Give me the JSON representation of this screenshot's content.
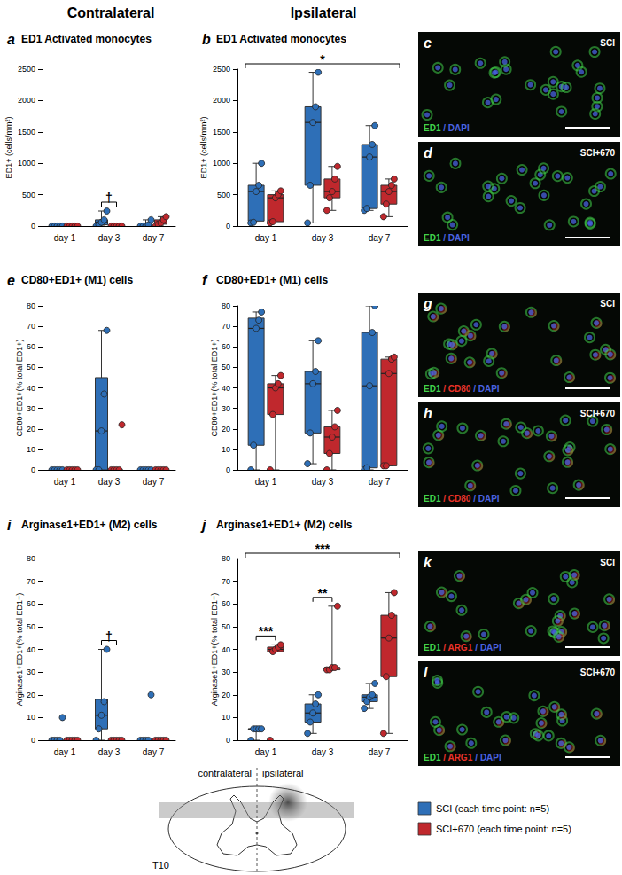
{
  "columns": [
    "Contralateral",
    "Ipsilateral"
  ],
  "chart_data": [
    {
      "panel": "a",
      "type": "boxplot",
      "title": "ED1 Activated monocytes",
      "ylabel": "ED1+ (cells/mm²)",
      "categories": [
        "day 1",
        "day 3",
        "day 7"
      ],
      "ylim": [
        0,
        2500
      ],
      "yticks": [
        0,
        500,
        1000,
        1500,
        2000,
        2500
      ],
      "grid": false,
      "series": [
        {
          "name": "SCI (each time point: n=5)",
          "color": "#2e6fb7",
          "boxes": [
            [
              0,
              0,
              0,
              0,
              0
            ],
            [
              0,
              20,
              60,
              100,
              240
            ],
            [
              0,
              0,
              0,
              20,
              100
            ]
          ],
          "points": [
            [
              0,
              0,
              0,
              0,
              0
            ],
            [
              0,
              20,
              60,
              100,
              240
            ],
            [
              0,
              0,
              0,
              20,
              100
            ]
          ]
        },
        {
          "name": "SCI+670 (each time point: n=5)",
          "color": "#c0282d",
          "boxes": [
            [
              0,
              0,
              0,
              0,
              0
            ],
            [
              0,
              0,
              0,
              0,
              0
            ],
            [
              0,
              30,
              50,
              100,
              150
            ]
          ],
          "points": [
            [
              0,
              0,
              0,
              0,
              0
            ],
            [
              0,
              0,
              0,
              0,
              0
            ],
            [
              0,
              30,
              50,
              100,
              150
            ]
          ]
        }
      ],
      "annotations": [
        {
          "text": "†",
          "span": [
            "day 3"
          ]
        }
      ]
    },
    {
      "panel": "b",
      "type": "boxplot",
      "title": "ED1 Activated monocytes",
      "ylabel": "ED1+ (cells/mm²)",
      "categories": [
        "day 1",
        "day 3",
        "day 7"
      ],
      "ylim": [
        0,
        2500
      ],
      "yticks": [
        0,
        500,
        1000,
        1500,
        2000,
        2500
      ],
      "grid": false,
      "series": [
        {
          "name": "SCI (each time point: n=5)",
          "color": "#2e6fb7",
          "boxes": [
            [
              50,
              80,
              550,
              650,
              1000
            ],
            [
              50,
              650,
              1650,
              1900,
              2450
            ],
            [
              250,
              280,
              1100,
              1300,
              1600
            ]
          ],
          "points": [
            [
              50,
              60,
              550,
              650,
              1000
            ],
            [
              50,
              650,
              1650,
              1900,
              2450
            ],
            [
              250,
              280,
              1100,
              1300,
              1600
            ]
          ]
        },
        {
          "name": "SCI+670 (each time point: n=5)",
          "color": "#c0282d",
          "boxes": [
            [
              50,
              70,
              450,
              500,
              560
            ],
            [
              250,
              450,
              550,
              750,
              950
            ],
            [
              150,
              350,
              550,
              650,
              750
            ]
          ],
          "points": [
            [
              50,
              70,
              450,
              500,
              560
            ],
            [
              250,
              450,
              550,
              750,
              950
            ],
            [
              150,
              350,
              550,
              650,
              750
            ]
          ]
        }
      ],
      "annotations": [
        {
          "text": "*",
          "span": [
            "day 1",
            "day 7"
          ]
        }
      ]
    },
    {
      "panel": "e",
      "type": "boxplot",
      "title": "CD80+ED1+ (M1) cells",
      "ylabel": "CD80+ED1+(% total ED1+)",
      "categories": [
        "day 1",
        "day 3",
        "day 7"
      ],
      "ylim": [
        0,
        80
      ],
      "yticks": [
        0,
        10,
        20,
        30,
        40,
        50,
        60,
        70,
        80
      ],
      "grid": false,
      "series": [
        {
          "name": "SCI (each time point: n=5)",
          "color": "#2e6fb7",
          "boxes": [
            [
              0,
              0,
              0,
              0,
              0
            ],
            [
              0,
              0,
              19,
              45,
              68
            ],
            [
              0,
              0,
              0,
              0,
              0
            ]
          ],
          "points": [
            [
              0,
              0,
              0,
              0,
              0
            ],
            [
              0,
              0,
              19,
              37,
              68
            ],
            [
              0,
              0,
              0,
              0,
              0
            ]
          ]
        },
        {
          "name": "SCI+670 (each time point: n=5)",
          "color": "#c0282d",
          "boxes": [
            [
              0,
              0,
              0,
              0,
              0
            ],
            [
              0,
              0,
              0,
              0,
              0
            ],
            [
              0,
              0,
              0,
              0,
              0
            ]
          ],
          "points": [
            [
              0,
              0,
              0,
              0,
              0
            ],
            [
              0,
              0,
              0,
              0,
              22
            ],
            [
              0,
              0,
              0,
              0,
              0
            ]
          ]
        }
      ],
      "annotations": []
    },
    {
      "panel": "f",
      "type": "boxplot",
      "title": "CD80+ED1+ (M1) cells",
      "ylabel": "CD80+ED1+(% total ED1+)",
      "categories": [
        "day 1",
        "day 3",
        "day 7"
      ],
      "ylim": [
        0,
        80
      ],
      "yticks": [
        0,
        10,
        20,
        30,
        40,
        50,
        60,
        70,
        80
      ],
      "grid": false,
      "series": [
        {
          "name": "SCI (each time point: n=5)",
          "color": "#2e6fb7",
          "boxes": [
            [
              0,
              12,
              69,
              74,
              77
            ],
            [
              3,
              18,
              42,
              48,
              63
            ],
            [
              0,
              1,
              41,
              67,
              80
            ]
          ],
          "points": [
            [
              0,
              12,
              69,
              73,
              77
            ],
            [
              3,
              18,
              42,
              48,
              63
            ],
            [
              0,
              1,
              41,
              67,
              80
            ]
          ]
        },
        {
          "name": "SCI+670 (each time point: n=5)",
          "color": "#c0282d",
          "boxes": [
            [
              0,
              27,
              40,
              42,
              46
            ],
            [
              0,
              8,
              16,
              21,
              29
            ],
            [
              2,
              2,
              47,
              54,
              55
            ]
          ],
          "points": [
            [
              0,
              27,
              40,
              42,
              46
            ],
            [
              0,
              8,
              16,
              21,
              29
            ],
            [
              2,
              2,
              47,
              54,
              55
            ]
          ]
        }
      ],
      "annotations": []
    },
    {
      "panel": "i",
      "type": "boxplot",
      "title": "Arginase1+ED1+ (M2) cells",
      "ylabel": "Arginase1+ED1+(% total ED1+)",
      "categories": [
        "day 1",
        "day 3",
        "day 7"
      ],
      "ylim": [
        0,
        80
      ],
      "yticks": [
        0,
        10,
        20,
        30,
        40,
        50,
        60,
        70,
        80
      ],
      "grid": false,
      "series": [
        {
          "name": "SCI (each time point: n=5)",
          "color": "#2e6fb7",
          "boxes": [
            [
              0,
              0,
              0,
              0,
              0
            ],
            [
              0,
              5,
              11,
              18,
              40
            ],
            [
              0,
              0,
              0,
              0,
              0
            ]
          ],
          "points": [
            [
              0,
              0,
              0,
              0,
              10
            ],
            [
              0,
              5,
              11,
              17,
              40
            ],
            [
              0,
              0,
              0,
              0,
              20
            ]
          ]
        },
        {
          "name": "SCI+670 (each time point: n=5)",
          "color": "#c0282d",
          "boxes": [
            [
              0,
              0,
              0,
              0,
              0
            ],
            [
              0,
              0,
              0,
              0,
              0
            ],
            [
              0,
              0,
              0,
              0,
              0
            ]
          ],
          "points": [
            [
              0,
              0,
              0,
              0,
              0
            ],
            [
              0,
              0,
              0,
              0,
              0
            ],
            [
              0,
              0,
              0,
              0,
              0
            ]
          ]
        }
      ],
      "annotations": [
        {
          "text": "†",
          "span": [
            "day 3"
          ]
        }
      ]
    },
    {
      "panel": "j",
      "type": "boxplot",
      "title": "Arginase1+ED1+ (M2) cells",
      "ylabel": "Arginase1+ED1+(% total ED1+)",
      "categories": [
        "day 1",
        "day 3",
        "day 7"
      ],
      "ylim": [
        0,
        80
      ],
      "yticks": [
        0,
        10,
        20,
        30,
        40,
        50,
        60,
        70,
        80
      ],
      "grid": false,
      "series": [
        {
          "name": "SCI (each time point: n=5)",
          "color": "#2e6fb7",
          "boxes": [
            [
              0,
              5,
              5,
              5,
              5
            ],
            [
              3,
              8,
              12,
              16,
              20
            ],
            [
              14,
              17,
              19,
              20,
              25
            ]
          ],
          "points": [
            [
              0,
              5,
              5,
              5,
              5
            ],
            [
              3,
              8,
              12,
              16,
              20
            ],
            [
              14,
              17,
              19,
              20,
              25
            ]
          ]
        },
        {
          "name": "SCI+670 (each time point: n=5)",
          "color": "#c0282d",
          "boxes": [
            [
              39,
              39,
              40,
              41,
              42
            ],
            [
              31,
              31,
              32,
              32,
              59
            ],
            [
              3,
              28,
              45,
              55,
              65
            ]
          ],
          "points": [
            [
              0,
              39,
              40,
              41,
              42
            ],
            [
              31,
              31,
              32,
              32,
              59
            ],
            [
              3,
              28,
              45,
              55,
              65
            ]
          ]
        }
      ],
      "annotations": [
        {
          "text": "***",
          "span": [
            "day 1"
          ]
        },
        {
          "text": "**",
          "span": [
            "day 3"
          ]
        },
        {
          "text": "***",
          "span": [
            "day 1",
            "day 7"
          ]
        }
      ]
    }
  ],
  "images": [
    {
      "panel": "c",
      "label": "SCI",
      "channels": [
        {
          "text": "ED1",
          "color": "#41d24a"
        },
        {
          "text": "/ DAPI",
          "color": "#4a63e0"
        }
      ]
    },
    {
      "panel": "d",
      "label": "SCI+670",
      "channels": [
        {
          "text": "ED1",
          "color": "#41d24a"
        },
        {
          "text": "/ DAPI",
          "color": "#4a63e0"
        }
      ]
    },
    {
      "panel": "g",
      "label": "SCI",
      "channels": [
        {
          "text": "ED1",
          "color": "#41d24a"
        },
        {
          "text": "/ CD80",
          "color": "#e8322a"
        },
        {
          "text": "/ DAPI",
          "color": "#4a63e0"
        }
      ]
    },
    {
      "panel": "h",
      "label": "SCI+670",
      "channels": [
        {
          "text": "ED1",
          "color": "#41d24a"
        },
        {
          "text": "/ CD80",
          "color": "#e8322a"
        },
        {
          "text": "/ DAPI",
          "color": "#4a63e0"
        }
      ]
    },
    {
      "panel": "k",
      "label": "SCI",
      "channels": [
        {
          "text": "ED1",
          "color": "#41d24a"
        },
        {
          "text": "/ ARG1",
          "color": "#e8322a"
        },
        {
          "text": "/ DAPI",
          "color": "#4a63e0"
        }
      ]
    },
    {
      "panel": "l",
      "label": "SCI+670",
      "channels": [
        {
          "text": "ED1",
          "color": "#41d24a"
        },
        {
          "text": "/ ARG1",
          "color": "#e8322a"
        },
        {
          "text": "/ DAPI",
          "color": "#4a63e0"
        }
      ]
    }
  ],
  "diagram": {
    "left_label": "contralateral",
    "right_label": "ipsilateral",
    "level": "T10"
  }
}
